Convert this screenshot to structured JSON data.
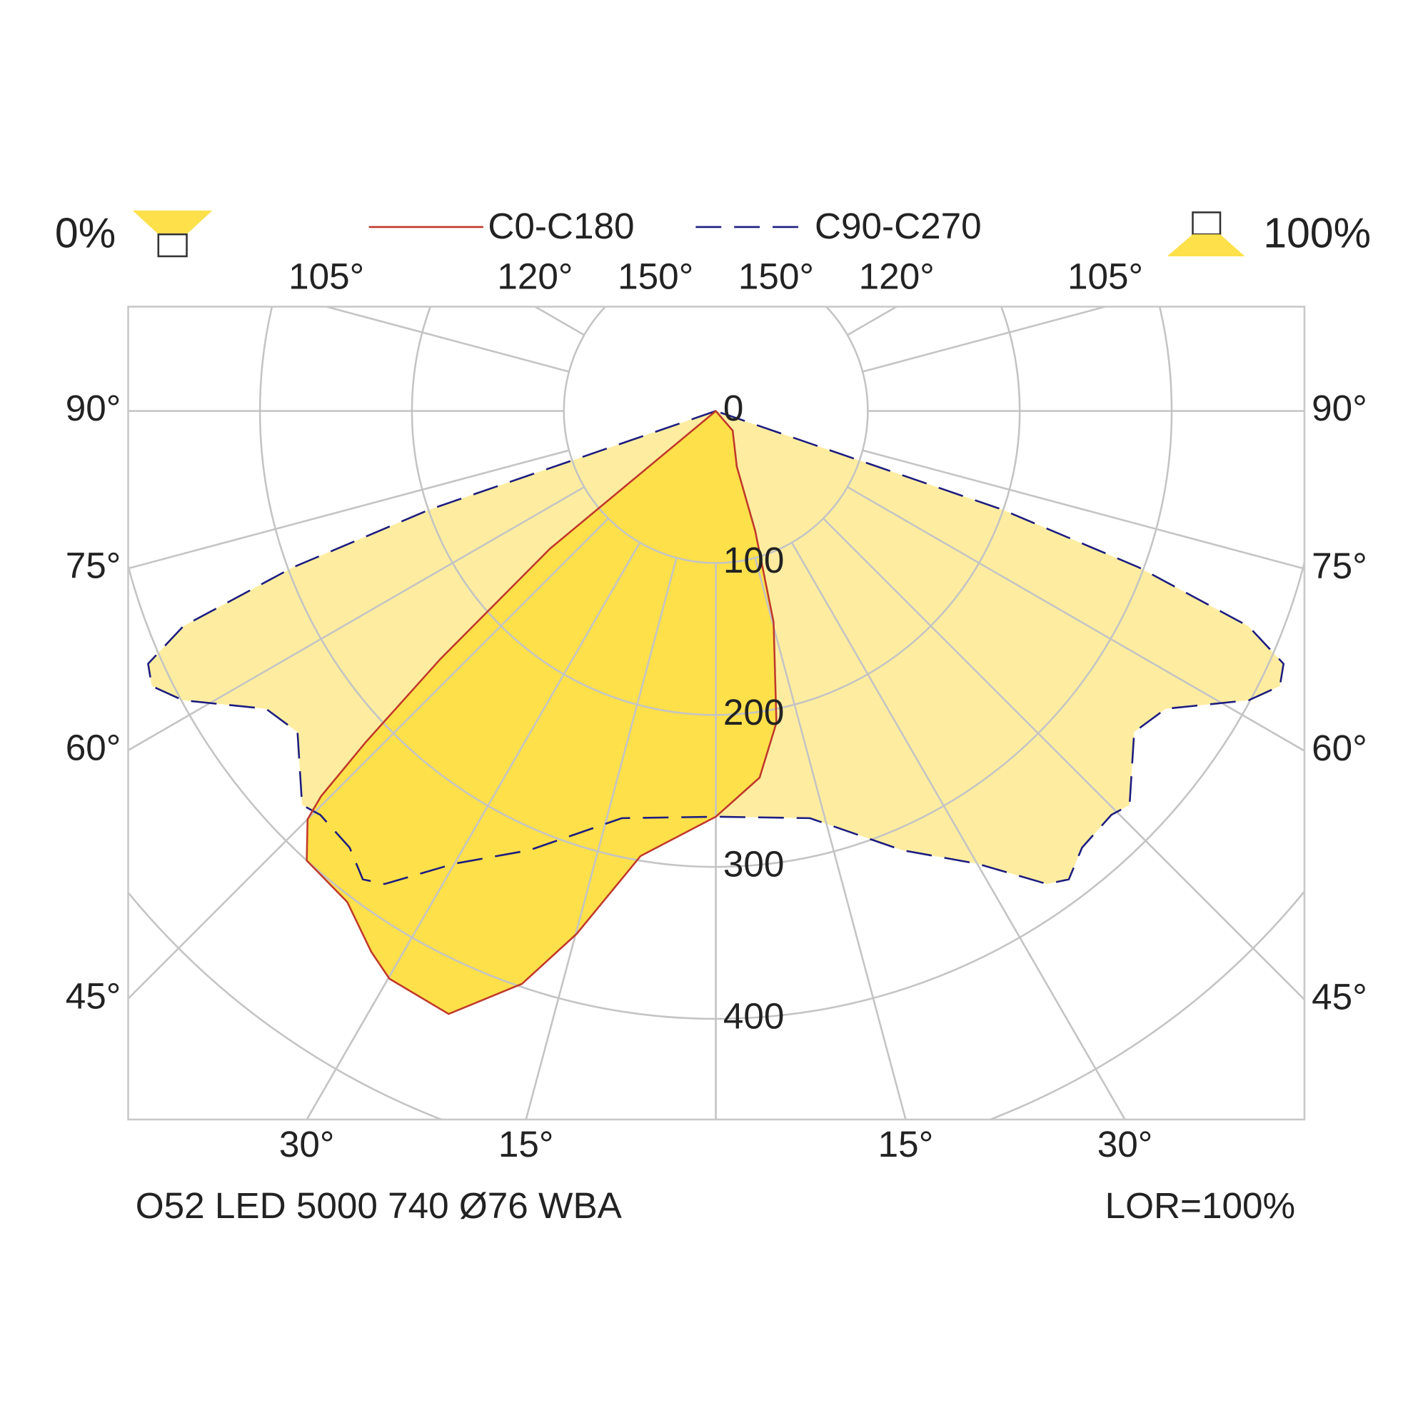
{
  "header": {
    "left_label": "0%",
    "right_label": "100%"
  },
  "chart_data": {
    "type": "polar",
    "rlim": [
      0,
      500
    ],
    "rticks": [
      0,
      100,
      200,
      300,
      400
    ],
    "angle_ticks": [
      {
        "value": -150,
        "label": "150°"
      },
      {
        "value": -120,
        "label": "120°"
      },
      {
        "value": -105,
        "label": "105°"
      },
      {
        "value": -90,
        "label": "90°"
      },
      {
        "value": -75,
        "label": "75°"
      },
      {
        "value": -60,
        "label": "60°"
      },
      {
        "value": -45,
        "label": "45°"
      },
      {
        "value": -30,
        "label": "30°"
      },
      {
        "value": -15,
        "label": "15°"
      },
      {
        "value": 15,
        "label": "15°"
      },
      {
        "value": 30,
        "label": "30°"
      },
      {
        "value": 45,
        "label": "45°"
      },
      {
        "value": 60,
        "label": "60°"
      },
      {
        "value": 75,
        "label": "75°"
      },
      {
        "value": 90,
        "label": "90°"
      },
      {
        "value": 105,
        "label": "105°"
      },
      {
        "value": 120,
        "label": "120°"
      },
      {
        "value": 150,
        "label": "150°"
      }
    ],
    "series": [
      {
        "name": "C90-C270",
        "color": "#1c1c80",
        "style": "dashed",
        "fill": "#feeda0",
        "angles": [
          -72,
          -71,
          -69.7,
          -68,
          -66,
          -64,
          -61.5,
          -56.5,
          -52.5,
          -46.4,
          -44.4,
          -40,
          -37,
          -35,
          -30,
          -23,
          -13,
          0,
          13,
          23,
          30,
          35,
          37,
          40,
          44.4,
          46.4,
          52.5,
          56.5,
          61.5,
          64,
          66,
          68,
          69.7,
          71,
          72
        ],
        "values": [
          0,
          199,
          297,
          378,
          409,
          413,
          399,
          355,
          347,
          376,
          372,
          375,
          386,
          380,
          344,
          314,
          275,
          267,
          275,
          314,
          344,
          380,
          386,
          375,
          372,
          376,
          347,
          355,
          399,
          413,
          409,
          378,
          297,
          199,
          0
        ]
      },
      {
        "name": "C0-C180",
        "color": "#c0392b",
        "style": "solid",
        "fill": "#fde04a",
        "angles": [
          -52,
          -50.3,
          -48,
          -46.6,
          -45.7,
          -45,
          -42.3,
          -36.9,
          -32.5,
          -29.9,
          -23.9,
          -18.7,
          -14.9,
          -9.6,
          0,
          6.8,
          11,
          15.3,
          18.2,
          20.7,
          40.6,
          50
        ],
        "values": [
          0,
          142,
          244,
          317,
          363,
          380,
          400,
          404,
          422,
          431,
          434,
          398,
          356,
          297,
          267,
          243,
          209,
          144,
          83,
          39,
          17,
          0
        ]
      }
    ]
  },
  "footer": {
    "left": "O52 LED 5000 740 Ø76 WBA",
    "right": "LOR=100%"
  }
}
